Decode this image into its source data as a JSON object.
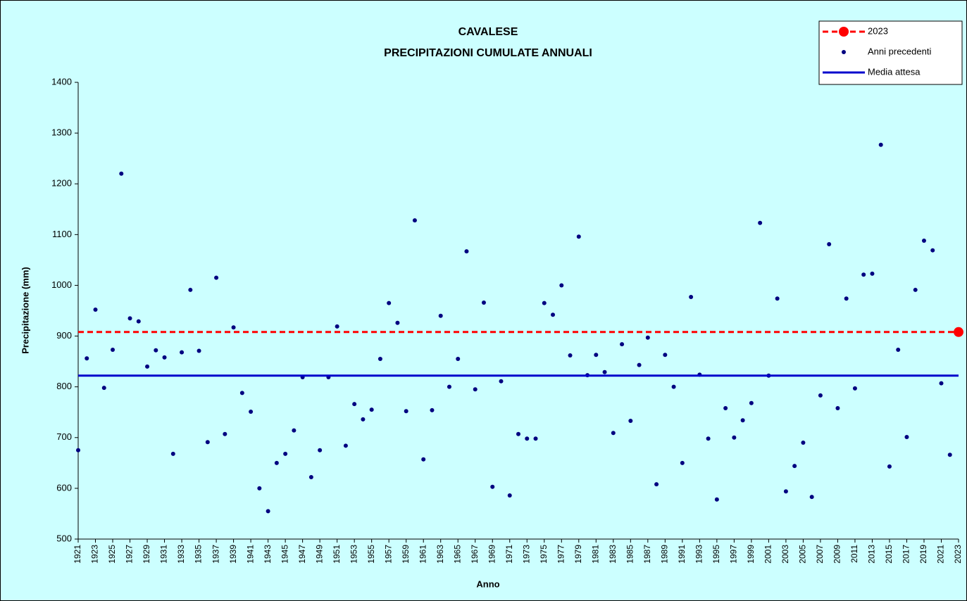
{
  "chart_data": {
    "type": "scatter",
    "title": "CAVALESE",
    "subtitle": "PRECIPITAZIONI CUMULATE ANNUALI",
    "x_label": "Anno",
    "y_label": "Precipitazione (mm)",
    "xlim": [
      1921,
      2023
    ],
    "ylim": [
      500,
      1400
    ],
    "yticks": [
      500,
      600,
      700,
      800,
      900,
      1000,
      1100,
      1200,
      1300,
      1400
    ],
    "xticks": [
      1921,
      1923,
      1925,
      1927,
      1929,
      1931,
      1933,
      1935,
      1937,
      1939,
      1941,
      1943,
      1945,
      1947,
      1949,
      1951,
      1953,
      1955,
      1957,
      1959,
      1961,
      1963,
      1965,
      1967,
      1969,
      1971,
      1973,
      1975,
      1977,
      1979,
      1981,
      1983,
      1985,
      1987,
      1989,
      1991,
      1993,
      1995,
      1997,
      1999,
      2001,
      2003,
      2005,
      2007,
      2009,
      2011,
      2013,
      2015,
      2017,
      2019,
      2021,
      2023
    ],
    "legend": "top-right",
    "series": [
      {
        "name": "2023",
        "color": "#ff0000",
        "style": "dashed-level",
        "x": [
          2023
        ],
        "values": [
          908
        ]
      },
      {
        "name": "Anni precedenti",
        "color": "#000080",
        "style": "points",
        "x": [
          1921,
          1922,
          1923,
          1924,
          1925,
          1926,
          1927,
          1928,
          1929,
          1930,
          1931,
          1932,
          1933,
          1934,
          1935,
          1936,
          1937,
          1938,
          1939,
          1940,
          1941,
          1942,
          1943,
          1944,
          1945,
          1946,
          1947,
          1948,
          1949,
          1950,
          1951,
          1952,
          1953,
          1954,
          1955,
          1956,
          1957,
          1958,
          1959,
          1960,
          1961,
          1962,
          1963,
          1964,
          1965,
          1966,
          1967,
          1968,
          1969,
          1970,
          1971,
          1972,
          1973,
          1974,
          1975,
          1976,
          1977,
          1978,
          1979,
          1980,
          1981,
          1982,
          1983,
          1984,
          1985,
          1986,
          1987,
          1988,
          1989,
          1990,
          1991,
          1992,
          1993,
          1994,
          1995,
          1996,
          1997,
          1998,
          1999,
          2000,
          2001,
          2002,
          2003,
          2004,
          2005,
          2006,
          2007,
          2008,
          2009,
          2010,
          2011,
          2012,
          2013,
          2014,
          2015,
          2016,
          2017,
          2018,
          2019,
          2020,
          2021,
          2022
        ],
        "values": [
          675,
          856,
          952,
          798,
          873,
          1220,
          935,
          929,
          840,
          872,
          858,
          668,
          868,
          991,
          871,
          691,
          1015,
          707,
          917,
          788,
          751,
          600,
          555,
          650,
          668,
          714,
          819,
          622,
          675,
          819,
          919,
          684,
          766,
          736,
          755,
          855,
          965,
          926,
          752,
          1128,
          657,
          754,
          940,
          800,
          855,
          1067,
          795,
          966,
          603,
          811,
          586,
          707,
          698,
          698,
          965,
          942,
          1000,
          862,
          1096,
          823,
          863,
          829,
          709,
          884,
          733,
          843,
          897,
          608,
          863,
          800,
          650,
          977,
          824,
          698,
          578,
          758,
          700,
          734,
          768,
          1123,
          822,
          974,
          594,
          644,
          690,
          583,
          783,
          1081,
          758,
          974,
          797,
          1021,
          1023,
          1277,
          643,
          873,
          701,
          991,
          1088,
          1069,
          807,
          666
        ]
      },
      {
        "name": "Media attesa",
        "color": "#0000cc",
        "style": "solid-level",
        "values": [
          822
        ]
      }
    ]
  }
}
